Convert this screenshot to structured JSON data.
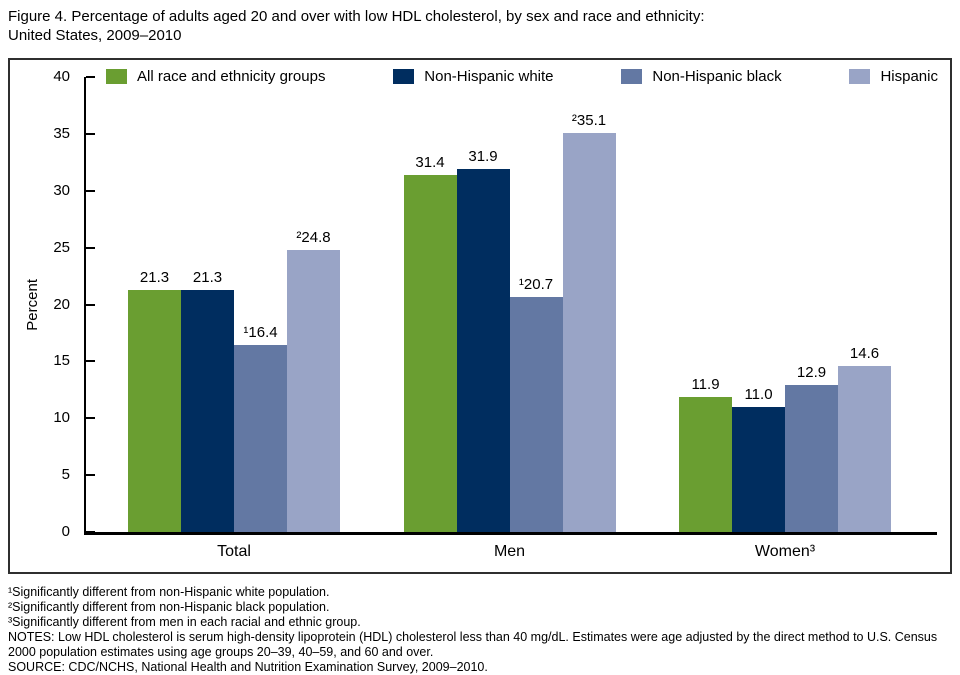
{
  "title": {
    "line1": "Figure 4. Percentage of adults aged 20 and over with low HDL cholesterol, by sex and race and ethnicity:",
    "line2": "United States, 2009–2010"
  },
  "chart_data": {
    "type": "bar",
    "title": "Percentage of adults aged 20 and over with low HDL cholesterol, by sex and race and ethnicity: United States, 2009–2010",
    "categories": [
      "Total",
      "Men",
      "Women³"
    ],
    "series": [
      {
        "name": "All race and ethnicity groups",
        "color": "#6a9e31",
        "values": [
          21.3,
          31.4,
          11.9
        ],
        "labels": [
          "21.3",
          "31.4",
          "11.9"
        ]
      },
      {
        "name": "Non-Hispanic white",
        "color": "#002d5f",
        "values": [
          21.3,
          31.9,
          11.0
        ],
        "labels": [
          "21.3",
          "31.9",
          "11.0"
        ]
      },
      {
        "name": "Non-Hispanic black",
        "color": "#6378a3",
        "values": [
          16.4,
          20.7,
          12.9
        ],
        "labels": [
          "¹16.4",
          "¹20.7",
          "12.9"
        ]
      },
      {
        "name": "Hispanic",
        "color": "#99a4c6",
        "values": [
          24.8,
          35.1,
          14.6
        ],
        "labels": [
          "²24.8",
          "²35.1",
          "14.6"
        ]
      }
    ],
    "xlabel": "",
    "ylabel": "Percent",
    "ylim": [
      0,
      40
    ],
    "yticks": [
      0,
      5,
      10,
      15,
      20,
      25,
      30,
      35,
      40
    ],
    "legend_position": "top",
    "grid": false
  },
  "footnotes": [
    "¹Significantly different from non-Hispanic white population.",
    "²Significantly different from non-Hispanic black population.",
    "³Significantly different from men in each racial and ethnic group.",
    "NOTES: Low HDL cholesterol is serum high-density lipoprotein (HDL) cholesterol less than 40 mg/dL. Estimates were age adjusted by the direct method to U.S. Census 2000 population estimates using age groups 20–39, 40–59, and 60 and over.",
    "SOURCE: CDC/NCHS, National Health and Nutrition Examination Survey, 2009–2010."
  ]
}
